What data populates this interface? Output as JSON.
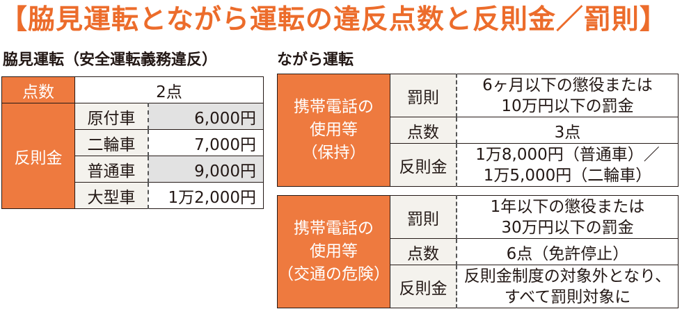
{
  "title": "【脇見運転とながら運転の違反点数と反則金／罰則】",
  "left": {
    "heading": "脇見運転（安全運転義務違反）",
    "points_label": "点数",
    "points_value": "2点",
    "fine_label": "反則金",
    "rows": [
      {
        "vehicle": "原付車",
        "amount": "6,000円"
      },
      {
        "vehicle": "二輪車",
        "amount": "7,000円"
      },
      {
        "vehicle": "普通車",
        "amount": "9,000円"
      },
      {
        "vehicle": "大型車",
        "amount": "1万2,000円"
      }
    ]
  },
  "right": {
    "heading": "ながら運転",
    "tables": [
      {
        "category": [
          "携帯電話の",
          "使用等",
          "（保持）"
        ],
        "penalty_label": "罰則",
        "penalty_value": [
          "6ヶ月以下の懲役または",
          "10万円以下の罰金"
        ],
        "points_label": "点数",
        "points_value": "3点",
        "fine_label": "反則金",
        "fine_value": [
          "1万8,000円（普通車）／",
          "1万5,000円（二輪車）"
        ]
      },
      {
        "category": [
          "携帯電話の",
          "使用等",
          "（交通の危険）"
        ],
        "penalty_label": "罰則",
        "penalty_value": [
          "1年以下の懲役または",
          "30万円以下の罰金"
        ],
        "points_label": "点数",
        "points_value": "6点（免許停止）",
        "fine_label": "反則金",
        "fine_value": [
          "反則金制度の対象外となり、",
          "すべて罰則対象に"
        ]
      }
    ]
  }
}
